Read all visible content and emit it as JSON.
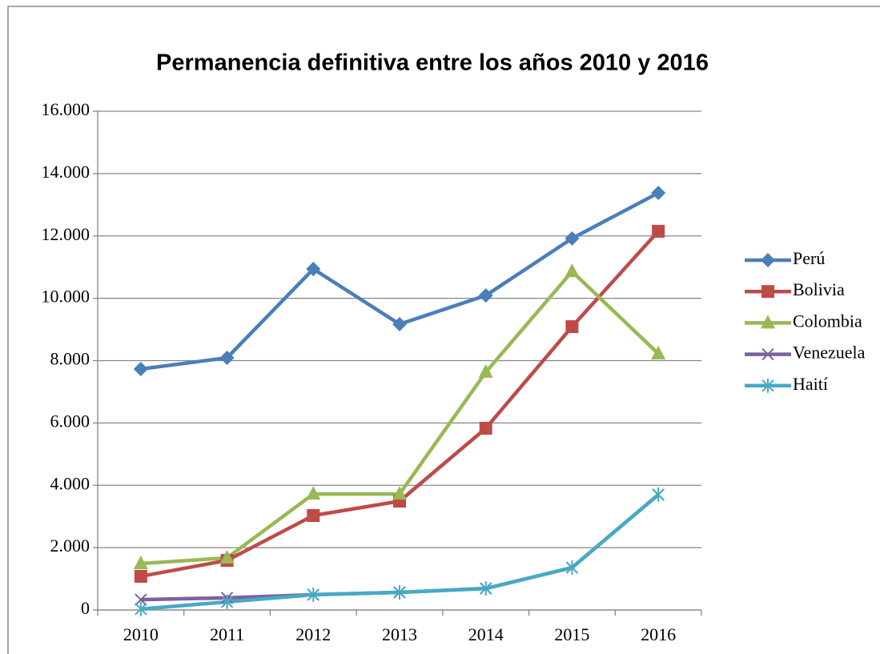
{
  "chart_data": {
    "type": "line",
    "title": "Permanencia definitiva  entre los años 2010 y 2016",
    "categories": [
      "2010",
      "2011",
      "2012",
      "2013",
      "2014",
      "2015",
      "2016"
    ],
    "series": [
      {
        "name": "Perú",
        "color": "#4a7ebb",
        "marker": "diamond",
        "values": [
          7730,
          8090,
          10940,
          9170,
          10090,
          11920,
          13380
        ]
      },
      {
        "name": "Bolivia",
        "color": "#be4b48",
        "marker": "square",
        "values": [
          1080,
          1590,
          3030,
          3490,
          5830,
          9090,
          12150
        ]
      },
      {
        "name": "Colombia",
        "color": "#98b954",
        "marker": "triangle",
        "values": [
          1490,
          1670,
          3720,
          3720,
          7630,
          10860,
          8220
        ]
      },
      {
        "name": "Venezuela",
        "color": "#7d60a0",
        "marker": "x",
        "values": [
          330,
          390,
          490,
          565,
          690,
          1360,
          3700
        ]
      },
      {
        "name": "Haití",
        "color": "#46aac5",
        "marker": "star",
        "values": [
          30,
          260,
          490,
          565,
          690,
          1360,
          3700
        ]
      }
    ],
    "ylim": [
      0,
      16000
    ],
    "yticks": [
      0,
      {
        "value": 2000,
        "label": "2.000"
      },
      {
        "value": 4000,
        "label": "4.000"
      },
      {
        "value": 6000,
        "label": "6.000"
      },
      {
        "value": 8000,
        "label": "8.000"
      },
      {
        "value": 10000,
        "label": "10.000"
      },
      {
        "value": 12000,
        "label": "12.000"
      },
      {
        "value": 14000,
        "label": "14.000"
      },
      {
        "value": 16000,
        "label": "16.000"
      }
    ],
    "grid": true,
    "legend": "right"
  }
}
